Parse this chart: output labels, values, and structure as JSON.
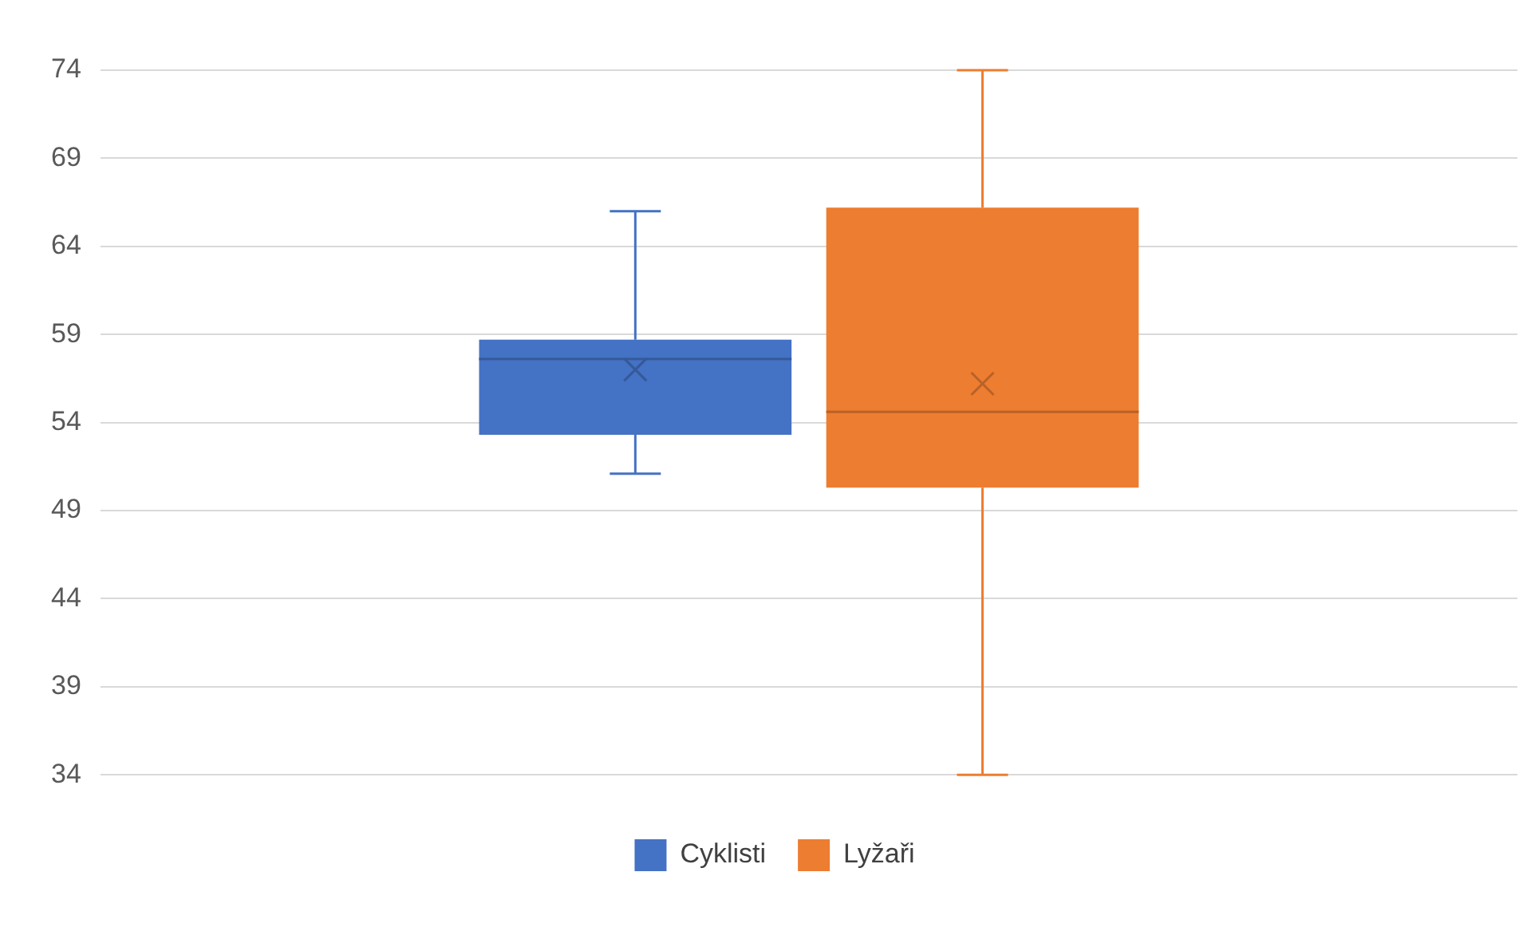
{
  "chart_data": {
    "type": "box",
    "categories": [
      null
    ],
    "series": [
      {
        "name": "Cyklisti",
        "color": "#4472c4",
        "boxes": [
          {
            "low": 51.1,
            "q1": 53.3,
            "median": 57.6,
            "q3": 58.7,
            "high": 66,
            "mean": 57
          }
        ]
      },
      {
        "name": "Lyžaři",
        "color": "#ed7d31",
        "boxes": [
          {
            "low": 34,
            "q1": 50.3,
            "median": 54.6,
            "q3": 66.2,
            "high": 74,
            "mean": 56.2
          }
        ]
      }
    ],
    "ylim": [
      34,
      74
    ],
    "yticks": [
      34,
      39,
      44,
      49,
      54,
      59,
      64,
      69,
      74
    ],
    "grid": "y",
    "legend": "bottom",
    "marker": "cross"
  }
}
